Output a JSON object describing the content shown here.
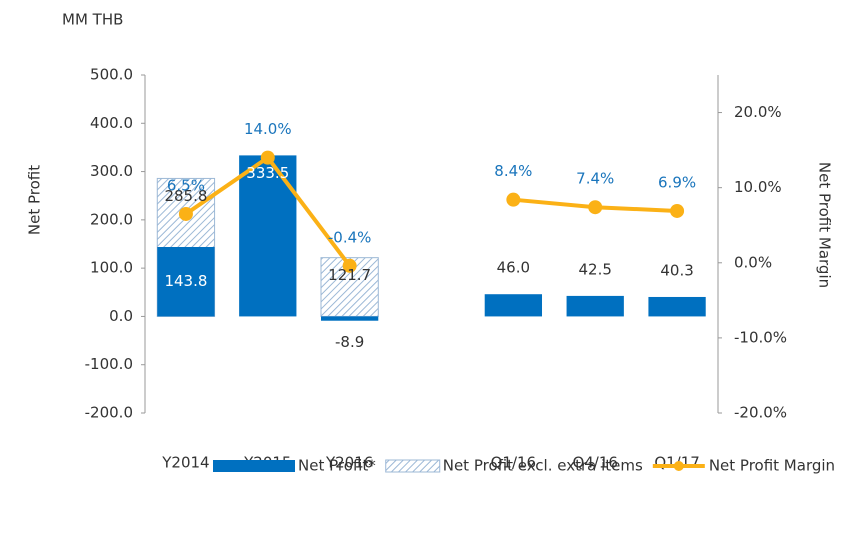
{
  "chart_data": {
    "type": "bar_line",
    "unit_label": "MM THB",
    "y_label": "Net Profit",
    "y2_label": "Net Profit Margin",
    "categories": [
      "Y2014",
      "Y2015",
      "Y2016",
      null,
      "Q1/16",
      "Q4/16",
      "Q1/17"
    ],
    "series": [
      {
        "name": "Net Profit*",
        "type": "bar",
        "color": "#0070c0",
        "values": [
          143.8,
          333.5,
          -8.9,
          null,
          46.0,
          42.5,
          40.3
        ],
        "value_labels": [
          "143.8",
          "333.5",
          "-8.9",
          null,
          "46.0",
          "42.5",
          "40.3"
        ]
      },
      {
        "name": "Net Profit excl. extra items",
        "type": "hatched_bar",
        "color": "#9cb8d6",
        "values": [
          285.8,
          null,
          121.7,
          null,
          null,
          null,
          null
        ],
        "value_labels": [
          "285.8",
          null,
          "121.7",
          null,
          null,
          null,
          null
        ]
      },
      {
        "name": "Net Profit Margin",
        "type": "line",
        "axis": "y2",
        "color": "#fbb116",
        "values": [
          6.5,
          14.0,
          -0.4,
          null,
          8.4,
          7.4,
          6.9
        ],
        "value_labels": [
          "6.5%",
          "14.0%",
          "-0.4%",
          null,
          "8.4%",
          "7.4%",
          "6.9%"
        ]
      }
    ],
    "ylim": [
      -200,
      500
    ],
    "yticks": [
      {
        "value": -200,
        "label": "-200.0"
      },
      {
        "value": -100,
        "label": "-100.0"
      },
      {
        "value": 0,
        "label": "0.0"
      },
      {
        "value": 100,
        "label": "100.0"
      },
      {
        "value": 200,
        "label": "200.0"
      },
      {
        "value": 300,
        "label": "300.0"
      },
      {
        "value": 400,
        "label": "400.0"
      },
      {
        "value": 500,
        "label": "500.0"
      }
    ],
    "y2lim": [
      -20,
      25
    ],
    "y2ticks": [
      {
        "value": -20,
        "label": "-20.0%"
      },
      {
        "value": -10,
        "label": "-10.0%"
      },
      {
        "value": 0,
        "label": "0.0%"
      },
      {
        "value": 10,
        "label": "10.0%"
      },
      {
        "value": 20,
        "label": "20.0%"
      }
    ],
    "grid": false,
    "legend": "bottom"
  }
}
